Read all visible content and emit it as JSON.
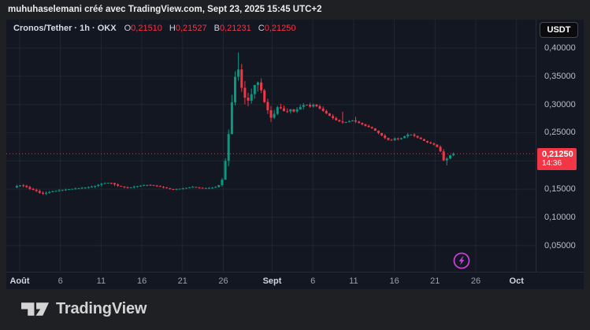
{
  "attribution": "muhuhaselemani créé avec TradingView.com, Sept 23, 2025 15:45 UTC+2",
  "header": {
    "symbol_title": "Cronos/Tether · 1h · OKX",
    "ohlc": [
      {
        "label": "O",
        "value": "0,21510"
      },
      {
        "label": "H",
        "value": "0,21527"
      },
      {
        "label": "B",
        "value": "0,21231"
      },
      {
        "label": "C",
        "value": "0,21250"
      }
    ]
  },
  "currency_button": "USDT",
  "price_badge": {
    "price": "0,21250",
    "time": "14:36"
  },
  "logo_text": "TradingView",
  "colors": {
    "up": "#089981",
    "down": "#f23645",
    "badge_bg": "#f23645",
    "grid": "rgba(134,137,147,0.12)",
    "boost_purple": "#c93ddb",
    "panel_bg": "#131722"
  },
  "chart_data": {
    "type": "candlestick",
    "symbol": "CRO/USDT",
    "interval": "1h",
    "exchange": "OKX",
    "title": "Cronos/Tether · 1h · OKX",
    "current_ohlc": {
      "open": 0.2151,
      "high": 0.21527,
      "low": 0.21231,
      "close": 0.2125
    },
    "last_price": 0.2125,
    "last_time": "14:36",
    "ylim_visible": [
      0.05,
      0.4
    ],
    "grid": true,
    "y_ticks": [
      {
        "label": "0,40000",
        "value": 0.4
      },
      {
        "label": "0,35000",
        "value": 0.35
      },
      {
        "label": "0,30000",
        "value": 0.3
      },
      {
        "label": "0,25000",
        "value": 0.25
      },
      {
        "label": "0,15000",
        "value": 0.15
      },
      {
        "label": "0,10000",
        "value": 0.1
      },
      {
        "label": "0,05000",
        "value": 0.05
      }
    ],
    "grid_prices": [
      0.4,
      0.35,
      0.3,
      0.25,
      0.2,
      0.15,
      0.1,
      0.05
    ],
    "x_ticks": [
      {
        "label": "Août",
        "day": 0,
        "month": true
      },
      {
        "label": "6",
        "day": 5,
        "month": false
      },
      {
        "label": "11",
        "day": 10,
        "month": false
      },
      {
        "label": "16",
        "day": 15,
        "month": false
      },
      {
        "label": "21",
        "day": 20,
        "month": false
      },
      {
        "label": "26",
        "day": 25,
        "month": false
      },
      {
        "label": "Sept",
        "day": 31,
        "month": true
      },
      {
        "label": "6",
        "day": 36,
        "month": false
      },
      {
        "label": "11",
        "day": 41,
        "month": false
      },
      {
        "label": "16",
        "day": 46,
        "month": false
      },
      {
        "label": "21",
        "day": 51,
        "month": false
      },
      {
        "label": "26",
        "day": 56,
        "month": false
      },
      {
        "label": "Oct",
        "day": 61,
        "month": true
      }
    ],
    "price_path_desc": "keypoints [day offset from Aug 1, price, wick volatility]",
    "price_path": [
      [
        -0.6,
        0.1525,
        0.003
      ],
      [
        0.1,
        0.157,
        0.003
      ],
      [
        0.8,
        0.1555,
        0.003
      ],
      [
        1.5,
        0.15,
        0.003
      ],
      [
        2.2,
        0.147,
        0.0025
      ],
      [
        2.9,
        0.1415,
        0.003
      ],
      [
        3.6,
        0.144,
        0.0025
      ],
      [
        4.8,
        0.1475,
        0.002
      ],
      [
        6.3,
        0.15,
        0.002
      ],
      [
        7.7,
        0.152,
        0.002
      ],
      [
        9.2,
        0.1545,
        0.0025
      ],
      [
        10.4,
        0.16,
        0.003
      ],
      [
        11.3,
        0.1615,
        0.003
      ],
      [
        12.3,
        0.1555,
        0.003
      ],
      [
        13.4,
        0.152,
        0.002
      ],
      [
        14.5,
        0.155,
        0.002
      ],
      [
        15.8,
        0.1575,
        0.002
      ],
      [
        16.9,
        0.156,
        0.002
      ],
      [
        17.9,
        0.1525,
        0.002
      ],
      [
        19.0,
        0.149,
        0.002
      ],
      [
        20.3,
        0.1515,
        0.002
      ],
      [
        21.6,
        0.154,
        0.002
      ],
      [
        22.5,
        0.1515,
        0.002
      ],
      [
        23.7,
        0.152,
        0.002
      ],
      [
        24.5,
        0.1545,
        0.002
      ],
      [
        25.0,
        0.163,
        0.004
      ],
      [
        25.3,
        0.185,
        0.008
      ],
      [
        25.7,
        0.225,
        0.012
      ],
      [
        26.1,
        0.285,
        0.015
      ],
      [
        26.5,
        0.335,
        0.015
      ],
      [
        26.9,
        0.372,
        0.018
      ],
      [
        27.2,
        0.352,
        0.02
      ],
      [
        27.5,
        0.325,
        0.015
      ],
      [
        27.8,
        0.306,
        0.012
      ],
      [
        28.0,
        0.33,
        0.012
      ],
      [
        28.3,
        0.302,
        0.012
      ],
      [
        28.6,
        0.316,
        0.01
      ],
      [
        28.9,
        0.33,
        0.01
      ],
      [
        29.3,
        0.342,
        0.012
      ],
      [
        29.7,
        0.334,
        0.01
      ],
      [
        30.1,
        0.31,
        0.01
      ],
      [
        30.5,
        0.295,
        0.008
      ],
      [
        30.9,
        0.281,
        0.008
      ],
      [
        31.2,
        0.272,
        0.008
      ],
      [
        31.6,
        0.29,
        0.008
      ],
      [
        32.0,
        0.298,
        0.007
      ],
      [
        32.4,
        0.29,
        0.006
      ],
      [
        32.9,
        0.286,
        0.005
      ],
      [
        33.4,
        0.292,
        0.005
      ],
      [
        33.9,
        0.287,
        0.005
      ],
      [
        34.3,
        0.292,
        0.005
      ],
      [
        34.8,
        0.297,
        0.005
      ],
      [
        35.3,
        0.301,
        0.005
      ],
      [
        35.8,
        0.296,
        0.004
      ],
      [
        36.3,
        0.3,
        0.004
      ],
      [
        36.8,
        0.2955,
        0.004
      ],
      [
        37.2,
        0.291,
        0.004
      ],
      [
        37.7,
        0.286,
        0.004
      ],
      [
        38.2,
        0.28,
        0.004
      ],
      [
        38.7,
        0.2755,
        0.004
      ],
      [
        39.2,
        0.271,
        0.004
      ],
      [
        39.9,
        0.268,
        0.003
      ],
      [
        40.5,
        0.2695,
        0.003
      ],
      [
        41.1,
        0.272,
        0.004
      ],
      [
        41.7,
        0.268,
        0.003
      ],
      [
        42.3,
        0.2645,
        0.003
      ],
      [
        42.8,
        0.261,
        0.003
      ],
      [
        43.4,
        0.258,
        0.003
      ],
      [
        44.0,
        0.252,
        0.003
      ],
      [
        44.6,
        0.2455,
        0.003
      ],
      [
        45.2,
        0.239,
        0.003
      ],
      [
        45.7,
        0.2355,
        0.003
      ],
      [
        46.2,
        0.24,
        0.003
      ],
      [
        46.8,
        0.238,
        0.003
      ],
      [
        47.3,
        0.2425,
        0.003
      ],
      [
        47.9,
        0.247,
        0.004
      ],
      [
        48.4,
        0.2465,
        0.003
      ],
      [
        48.8,
        0.243,
        0.003
      ],
      [
        49.4,
        0.239,
        0.002
      ],
      [
        50.0,
        0.234,
        0.002
      ],
      [
        50.6,
        0.231,
        0.002
      ],
      [
        51.2,
        0.228,
        0.002
      ],
      [
        51.6,
        0.223,
        0.003
      ],
      [
        52.0,
        0.213,
        0.004
      ],
      [
        52.3,
        0.1985,
        0.005
      ],
      [
        52.6,
        0.2035,
        0.004
      ],
      [
        52.9,
        0.2085,
        0.003
      ],
      [
        53.3,
        0.2125,
        0.003
      ]
    ],
    "spikes": [
      {
        "day": 39.6,
        "high": 0.287
      },
      {
        "day": 41.2,
        "high": 0.278
      },
      {
        "day": 52.3,
        "low": 0.192
      },
      {
        "day": 26.9,
        "high": 0.392
      }
    ],
    "legend_position": "none"
  }
}
